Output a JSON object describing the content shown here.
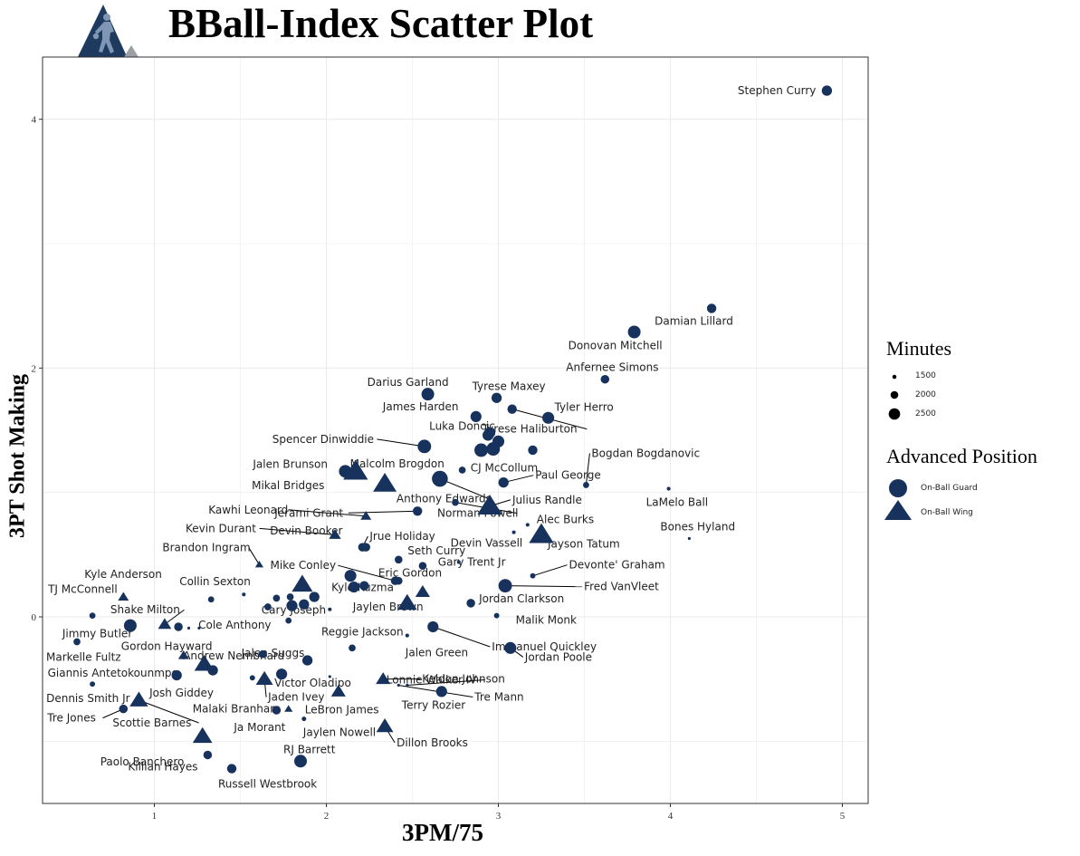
{
  "title": "BBall-Index Scatter Plot",
  "logo": {
    "icon": "basketball-player-icon",
    "colors": {
      "primary": "#1f3a5f",
      "secondary": "#9aa0a6"
    }
  },
  "colors": {
    "point": "#17325c",
    "grid": "#ebebeb",
    "panel_border": "#333333",
    "leader": "#000000"
  },
  "chart_data": {
    "type": "scatter",
    "title": "BBall-Index Scatter Plot",
    "xlabel": "3PM/75",
    "ylabel": "3PT Shot Making",
    "xlim": [
      0.35,
      5.15
    ],
    "ylim": [
      -1.5,
      4.5
    ],
    "xticks": [
      1,
      2,
      3,
      4,
      5
    ],
    "yticks": [
      0,
      2,
      4
    ],
    "grid": true,
    "legend_placement": "right",
    "size_legend": {
      "title": "Minutes",
      "values": [
        1500,
        2000,
        2500
      ]
    },
    "shape_legend": {
      "title": "Advanced Position",
      "entries": [
        {
          "label": "On-Ball  Guard",
          "shape": "circle"
        },
        {
          "label": "On-Ball  Wing",
          "shape": "triangle"
        }
      ]
    },
    "points": [
      {
        "name": "Stephen Curry",
        "x": 4.91,
        "y": 4.23,
        "pos": "guard",
        "min": 2200
      },
      {
        "name": "Damian Lillard",
        "x": 4.24,
        "y": 2.48,
        "pos": "guard",
        "min": 2100
      },
      {
        "name": "Donovan Mitchell",
        "x": 3.79,
        "y": 2.29,
        "pos": "guard",
        "min": 2500
      },
      {
        "name": "Anfernee Simons",
        "x": 3.62,
        "y": 1.91,
        "pos": "guard",
        "min": 2000
      },
      {
        "name": "Darius Garland",
        "x": 2.59,
        "y": 1.79,
        "pos": "guard",
        "min": 2500
      },
      {
        "name": "Tyrese Maxey",
        "x": 2.99,
        "y": 1.76,
        "pos": "guard",
        "min": 2200
      },
      {
        "name": "James Harden",
        "x": 2.87,
        "y": 1.61,
        "pos": "guard",
        "min": 2300
      },
      {
        "name": "Tyler Herro",
        "x": 3.29,
        "y": 1.6,
        "pos": "guard",
        "min": 2400
      },
      {
        "name": "Tyrese Haliburton",
        "x": 3.08,
        "y": 1.67,
        "pos": "guard",
        "min": 2100
      },
      {
        "name": "Luka Doncic",
        "x": 2.94,
        "y": 1.46,
        "pos": "guard",
        "min": 2300
      },
      {
        "name": "Spencer Dinwiddie",
        "x": 2.57,
        "y": 1.37,
        "pos": "guard",
        "min": 2600
      },
      {
        "name": "CJ McCollum",
        "x": 2.97,
        "y": 1.35,
        "pos": "guard",
        "min": 2600
      },
      {
        "name": "Bogdan Bogdanovic",
        "x": 3.51,
        "y": 1.06,
        "pos": "guard",
        "min": 1700
      },
      {
        "name": "Jalen Brunson",
        "x": 2.11,
        "y": 1.17,
        "pos": "guard",
        "min": 2500
      },
      {
        "name": "Malcolm Brogdon",
        "x": 2.79,
        "y": 1.18,
        "pos": "guard",
        "min": 1800
      },
      {
        "name": "Paul George",
        "x": 3.03,
        "y": 1.08,
        "pos": "guard",
        "min": 2200
      },
      {
        "name": "Mikal Bridges",
        "x": 2.34,
        "y": 1.07,
        "pos": "wing",
        "min": 2800
      },
      {
        "name": "LaMelo Ball",
        "x": 3.99,
        "y": 1.03,
        "pos": "guard",
        "min": 1400
      },
      {
        "name": "Anthony Edwards",
        "x": 2.66,
        "y": 1.11,
        "pos": "guard",
        "min": 2900
      },
      {
        "name": "Julius Randle",
        "x": 2.95,
        "y": 0.89,
        "pos": "wing",
        "min": 2900
      },
      {
        "name": "Kawhi Leonard",
        "x": 2.23,
        "y": 0.81,
        "pos": "wing",
        "min": 1800
      },
      {
        "name": "Jerami Grant",
        "x": 2.53,
        "y": 0.85,
        "pos": "guard",
        "min": 2100
      },
      {
        "name": "Alec Burks",
        "x": 3.17,
        "y": 0.74,
        "pos": "guard",
        "min": 1400
      },
      {
        "name": "Bones Hyland",
        "x": 4.11,
        "y": 0.63,
        "pos": "guard",
        "min": 1300
      },
      {
        "name": "Kevin Durant",
        "x": 2.05,
        "y": 0.66,
        "pos": "wing",
        "min": 1900
      },
      {
        "name": "Jayson Tatum",
        "x": 3.25,
        "y": 0.66,
        "pos": "wing",
        "min": 2900
      },
      {
        "name": "Jrue Holiday",
        "x": 2.21,
        "y": 0.56,
        "pos": "guard",
        "min": 2000
      },
      {
        "name": "Norman Powell",
        "x": 2.75,
        "y": 0.92,
        "pos": "guard",
        "min": 1800
      },
      {
        "name": "Devin Vassell",
        "x": 3.09,
        "y": 0.68,
        "pos": "guard",
        "min": 1400
      },
      {
        "name": "Devin Booker",
        "x": 2.23,
        "y": 0.56,
        "pos": "guard",
        "min": 2000
      },
      {
        "name": "Brandon Ingram",
        "x": 1.61,
        "y": 0.42,
        "pos": "wing",
        "min": 1600
      },
      {
        "name": "Seth Curry",
        "x": 2.42,
        "y": 0.46,
        "pos": "guard",
        "min": 1900
      },
      {
        "name": "Eric Gordon",
        "x": 2.56,
        "y": 0.41,
        "pos": "guard",
        "min": 1900
      },
      {
        "name": "Gary Trent Jr",
        "x": 2.77,
        "y": 0.44,
        "pos": "guard",
        "min": 1400
      },
      {
        "name": "Devonte' Graham",
        "x": 3.2,
        "y": 0.33,
        "pos": "guard",
        "min": 1600
      },
      {
        "name": "Kyle Kuzma",
        "x": 2.14,
        "y": 0.33,
        "pos": "guard",
        "min": 2400
      },
      {
        "name": "Fred VanVleet",
        "x": 3.04,
        "y": 0.25,
        "pos": "guard",
        "min": 2600
      },
      {
        "name": "Mike Conley",
        "x": 2.4,
        "y": 0.29,
        "pos": "guard",
        "min": 2000
      },
      {
        "name": "Kyle Anderson",
        "x": 0.82,
        "y": 0.16,
        "pos": "wing",
        "min": 1800
      },
      {
        "name": "Collin Sexton",
        "x": 1.33,
        "y": 0.14,
        "pos": "guard",
        "min": 1700
      },
      {
        "name": "Jordan Clarkson",
        "x": 2.84,
        "y": 0.11,
        "pos": "guard",
        "min": 2000
      },
      {
        "name": "TJ McConnell",
        "x": 0.64,
        "y": 0.01,
        "pos": "guard",
        "min": 1700
      },
      {
        "name": "Shake Milton",
        "x": 1.06,
        "y": -0.06,
        "pos": "wing",
        "min": 2000
      },
      {
        "name": "Cary Joseph",
        "x": 1.87,
        "y": 0.1,
        "pos": "guard",
        "min": 2200
      },
      {
        "name": "Jaylen Brown",
        "x": 2.47,
        "y": 0.11,
        "pos": "wing",
        "min": 2500
      },
      {
        "name": "Malik Monk",
        "x": 2.99,
        "y": 0.01,
        "pos": "guard",
        "min": 1600
      },
      {
        "name": "Jimmy Butler",
        "x": 0.86,
        "y": -0.07,
        "pos": "guard",
        "min": 2500
      },
      {
        "name": "Cole Anthony",
        "x": 1.14,
        "y": -0.08,
        "pos": "guard",
        "min": 2000
      },
      {
        "name": "Immanuel Quickley",
        "x": 2.62,
        "y": -0.08,
        "pos": "guard",
        "min": 2300
      },
      {
        "name": "Markelle Fultz",
        "x": 0.55,
        "y": -0.2,
        "pos": "guard",
        "min": 1800
      },
      {
        "name": "Gordon Hayward",
        "x": 1.17,
        "y": -0.31,
        "pos": "wing",
        "min": 1800
      },
      {
        "name": "Andrew Nembhard",
        "x": 1.63,
        "y": -0.3,
        "pos": "guard",
        "min": 1900
      },
      {
        "name": "Reggie Jackson",
        "x": 2.15,
        "y": -0.25,
        "pos": "guard",
        "min": 1800
      },
      {
        "name": "Jalen Green",
        "x": 2.47,
        "y": -0.15,
        "pos": "guard",
        "min": 1400
      },
      {
        "name": "Jordan Poole",
        "x": 3.07,
        "y": -0.25,
        "pos": "guard",
        "min": 2400
      },
      {
        "name": "Jalen Suggs",
        "x": 1.89,
        "y": -0.35,
        "pos": "guard",
        "min": 2200
      },
      {
        "name": "Victor Oladipo",
        "x": 1.74,
        "y": -0.46,
        "pos": "guard",
        "min": 2300
      },
      {
        "name": "Giannis Antetokounmpo",
        "x": 1.29,
        "y": -0.38,
        "pos": "wing",
        "min": 2500
      },
      {
        "name": "Josh Giddey",
        "x": 1.34,
        "y": -0.43,
        "pos": "guard",
        "min": 2200
      },
      {
        "name": "Jaden Ivey",
        "x": 1.64,
        "y": -0.5,
        "pos": "wing",
        "min": 2300
      },
      {
        "name": "Keldon Johnson",
        "x": 2.33,
        "y": -0.5,
        "pos": "wing",
        "min": 2100
      },
      {
        "name": "Lonnie Walker IV",
        "x": 2.47,
        "y": -0.55,
        "pos": "guard",
        "min": 1300
      },
      {
        "name": "Dennis Smith Jr",
        "x": 0.64,
        "y": -0.54,
        "pos": "guard",
        "min": 1600
      },
      {
        "name": "Terry Rozier",
        "x": 2.67,
        "y": -0.6,
        "pos": "guard",
        "min": 2300
      },
      {
        "name": "Tre Mann",
        "x": 2.42,
        "y": -0.55,
        "pos": "guard",
        "min": 1300
      },
      {
        "name": "LeBron James",
        "x": 2.07,
        "y": -0.6,
        "pos": "wing",
        "min": 2100
      },
      {
        "name": "Tre Jones",
        "x": 0.82,
        "y": -0.74,
        "pos": "guard",
        "min": 2000
      },
      {
        "name": "Scottie Barnes",
        "x": 0.91,
        "y": -0.67,
        "pos": "wing",
        "min": 2400
      },
      {
        "name": "Malaki Branham",
        "x": 1.78,
        "y": -0.74,
        "pos": "wing",
        "min": 1600
      },
      {
        "name": "Ja Morant",
        "x": 1.71,
        "y": -0.75,
        "pos": "guard",
        "min": 2000
      },
      {
        "name": "Jaylen Nowell",
        "x": 1.87,
        "y": -0.82,
        "pos": "guard",
        "min": 1500
      },
      {
        "name": "Dillon Brooks",
        "x": 2.34,
        "y": -0.88,
        "pos": "wing",
        "min": 2300
      },
      {
        "name": "Paolo Banchero",
        "x": 1.28,
        "y": -0.96,
        "pos": "wing",
        "min": 2500
      },
      {
        "name": "RJ Barrett",
        "x": 1.85,
        "y": -1.16,
        "pos": "guard",
        "min": 2500
      },
      {
        "name": "Killian Hayes",
        "x": 1.31,
        "y": -1.11,
        "pos": "guard",
        "min": 2000
      },
      {
        "name": "Russell Westbrook",
        "x": 1.45,
        "y": -1.22,
        "pos": "guard",
        "min": 2100
      },
      {
        "name": "",
        "x": 1.52,
        "y": 0.18,
        "pos": "guard",
        "min": 1400
      },
      {
        "name": "",
        "x": 1.66,
        "y": 0.08,
        "pos": "guard",
        "min": 1800
      },
      {
        "name": "",
        "x": 1.71,
        "y": 0.15,
        "pos": "guard",
        "min": 1800
      },
      {
        "name": "",
        "x": 1.79,
        "y": 0.16,
        "pos": "guard",
        "min": 1800
      },
      {
        "name": "",
        "x": 1.93,
        "y": 0.16,
        "pos": "guard",
        "min": 2200
      },
      {
        "name": "",
        "x": 1.8,
        "y": 0.09,
        "pos": "guard",
        "min": 2300
      },
      {
        "name": "",
        "x": 1.78,
        "y": -0.03,
        "pos": "guard",
        "min": 1700
      },
      {
        "name": "",
        "x": 1.86,
        "y": 0.26,
        "pos": "wing",
        "min": 2600
      },
      {
        "name": "",
        "x": 2.16,
        "y": 0.24,
        "pos": "guard",
        "min": 2300
      },
      {
        "name": "",
        "x": 2.22,
        "y": 0.25,
        "pos": "guard",
        "min": 2100
      },
      {
        "name": "",
        "x": 2.02,
        "y": 0.06,
        "pos": "guard",
        "min": 1400
      },
      {
        "name": "",
        "x": 2.56,
        "y": 0.2,
        "pos": "wing",
        "min": 2100
      },
      {
        "name": "",
        "x": 2.9,
        "y": 1.34,
        "pos": "guard",
        "min": 2600
      },
      {
        "name": "",
        "x": 2.95,
        "y": 1.48,
        "pos": "guard",
        "min": 2300
      },
      {
        "name": "",
        "x": 3.0,
        "y": 1.41,
        "pos": "guard",
        "min": 2400
      },
      {
        "name": "",
        "x": 3.2,
        "y": 1.34,
        "pos": "guard",
        "min": 2100
      },
      {
        "name": "",
        "x": 2.17,
        "y": 1.17,
        "pos": "wing",
        "min": 2900
      },
      {
        "name": "",
        "x": 2.42,
        "y": 0.29,
        "pos": "guard",
        "min": 1900
      },
      {
        "name": "",
        "x": 1.2,
        "y": -0.09,
        "pos": "guard",
        "min": 1300
      },
      {
        "name": "",
        "x": 1.26,
        "y": -0.09,
        "pos": "guard",
        "min": 1300
      },
      {
        "name": "",
        "x": 1.13,
        "y": -0.47,
        "pos": "guard",
        "min": 2200
      },
      {
        "name": "",
        "x": 1.57,
        "y": -0.49,
        "pos": "guard",
        "min": 1600
      },
      {
        "name": "",
        "x": 2.02,
        "y": -0.48,
        "pos": "guard",
        "min": 1300
      }
    ]
  }
}
